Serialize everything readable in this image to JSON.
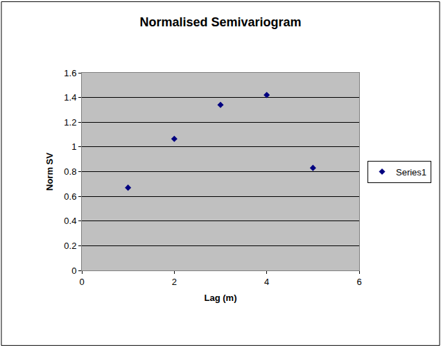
{
  "chart_data": {
    "type": "scatter",
    "title": "Normalised Semivariogram",
    "x_label": "Lag (m)",
    "y_label": "Norm SV",
    "series": [
      {
        "name": "Series1",
        "color": "#000080",
        "marker": "diamond",
        "x": [
          1,
          2,
          3,
          4,
          5
        ],
        "values": [
          0.67,
          1.065,
          1.34,
          1.42,
          0.83
        ]
      }
    ],
    "xlim": [
      0,
      6
    ],
    "xticks": [
      0,
      2,
      4,
      6
    ],
    "ylim": [
      0,
      1.6
    ],
    "yticks": [
      0,
      0.2,
      0.4,
      0.6,
      0.8,
      1,
      1.2,
      1.4,
      1.6
    ],
    "grid": true,
    "legend": "right"
  }
}
